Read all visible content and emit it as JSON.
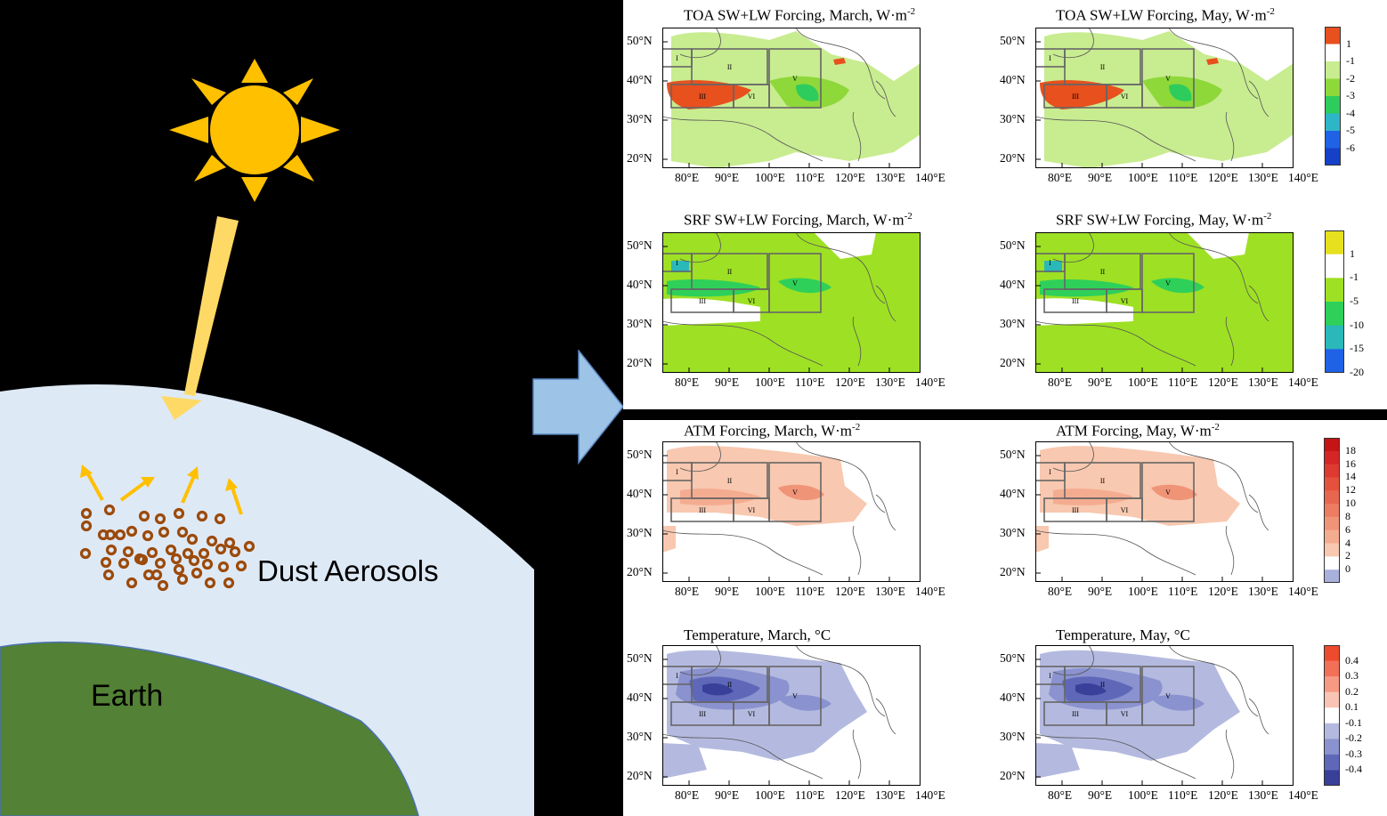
{
  "labels": {
    "dust": "Dust Aerosols",
    "earth": "Earth"
  },
  "colors": {
    "sun": "#ffc000",
    "sunbeam": "#ffd966",
    "sky": "#dee9f6",
    "earth": "#538135",
    "dust": "#9c4a0a",
    "flow_arrow": "#9dc3e6"
  },
  "axes": {
    "lon": [
      "80°E",
      "90°E",
      "100°E",
      "110°E",
      "120°E",
      "130°E",
      "140°E"
    ],
    "lat": [
      "50°N",
      "40°N",
      "30°N",
      "20°N"
    ]
  },
  "regions": [
    "I",
    "II",
    "III",
    "VI",
    "V"
  ],
  "panels": [
    {
      "id": "toa-march",
      "title": "TOA SW+LW Forcing, March, W·m",
      "sup": "-2",
      "field": "toa"
    },
    {
      "id": "toa-may",
      "title": "TOA SW+LW Forcing, May, W·m",
      "sup": "-2",
      "field": "toa"
    },
    {
      "id": "srf-march",
      "title": "SRF SW+LW Forcing, March, W·m",
      "sup": "-2",
      "field": "srf"
    },
    {
      "id": "srf-may",
      "title": "SRF SW+LW Forcing, May, W·m",
      "sup": "-2",
      "field": "srf"
    },
    {
      "id": "atm-march",
      "title": "ATM Forcing, March, W·m",
      "sup": "-2",
      "field": "atm"
    },
    {
      "id": "atm-may",
      "title": "ATM Forcing, May, W·m",
      "sup": "-2",
      "field": "atm"
    },
    {
      "id": "temp-march",
      "title": "Temperature, March, °C",
      "sup": "",
      "field": "temp"
    },
    {
      "id": "temp-may",
      "title": "Temperature, May, °C",
      "sup": "",
      "field": "temp"
    }
  ],
  "colorbars": [
    {
      "id": "toa",
      "labels": [
        "1",
        "-1",
        "-2",
        "-3",
        "-4",
        "-5",
        "-6"
      ],
      "colors": [
        "#e8501e",
        "#ffffff",
        "#c8ec90",
        "#8ed83a",
        "#2ecc5c",
        "#2fb5c8",
        "#1f62e6",
        "#1540c8"
      ]
    },
    {
      "id": "srf",
      "labels": [
        "1",
        "-1",
        "-5",
        "-10",
        "-15",
        "-20"
      ],
      "colors": [
        "#e6e01e",
        "#ffffff",
        "#9ee024",
        "#2ed05a",
        "#2ab8b8",
        "#1f62e6"
      ]
    },
    {
      "id": "atm",
      "labels": [
        "18",
        "16",
        "14",
        "12",
        "10",
        "8",
        "6",
        "4",
        "2",
        "0"
      ],
      "colors": [
        "#c41414",
        "#d42626",
        "#de3a32",
        "#e4523e",
        "#e86650",
        "#ec7c62",
        "#f09478",
        "#f4ac90",
        "#f8c8b0",
        "#ffffff",
        "#a8b0dc"
      ]
    },
    {
      "id": "temp",
      "labels": [
        "0.4",
        "0.3",
        "0.2",
        "0.1",
        "-0.1",
        "-0.2",
        "-0.3",
        "-0.4"
      ],
      "colors": [
        "#ee4a2e",
        "#f27058",
        "#f69a84",
        "#fac4b4",
        "#ffffff",
        "#b4badf",
        "#8a92cf",
        "#5f68b8",
        "#38409a"
      ]
    }
  ]
}
